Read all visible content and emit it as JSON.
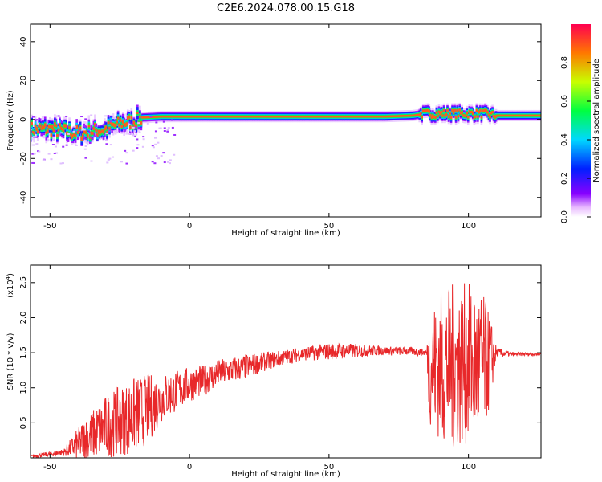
{
  "title": "C2E6.2024.078.00.15.G18",
  "chart_data": [
    {
      "type": "heatmap",
      "xlabel": "Height of straight line (km)",
      "ylabel": "Frequency (Hz)",
      "xlim": [
        -57,
        126
      ],
      "ylim": [
        -50,
        49
      ],
      "x_ticks": [
        -50,
        0,
        50,
        100
      ],
      "y_ticks": [
        -40,
        -20,
        0,
        20,
        40
      ],
      "colorbar": {
        "label": "Normalized spectral amplitude",
        "range": [
          0.0,
          1.0
        ],
        "ticks": [
          "0.0",
          "0.2",
          "0.4",
          "0.6",
          "0.8"
        ],
        "tick_values": [
          0.0,
          0.2,
          0.4,
          0.6,
          0.8
        ]
      },
      "ridge": {
        "x": [
          -57,
          -50,
          -45,
          -40,
          -35,
          -30,
          -25,
          -20,
          -17,
          -10,
          0,
          10,
          20,
          30,
          40,
          50,
          60,
          70,
          80,
          85,
          90,
          95,
          100,
          105,
          110,
          115,
          120,
          126
        ],
        "freq": [
          -5,
          -5,
          -6,
          -7,
          -6,
          -5,
          -2,
          -1,
          1,
          1.5,
          1.5,
          1.5,
          1.5,
          1.5,
          1.5,
          1.5,
          1.5,
          1.5,
          2,
          3,
          3,
          3,
          3,
          3,
          2,
          2,
          2,
          2
        ]
      }
    },
    {
      "type": "line",
      "xlabel": "Height of straight line (km)",
      "ylabel": "SNR (10 * v/v)",
      "y_scale_label": "(x10",
      "y_scale_exp": "4",
      "y_scale_close": ")",
      "xlim": [
        -57,
        126
      ],
      "ylim": [
        0.0,
        2.75
      ],
      "x_ticks": [
        -50,
        0,
        50,
        100
      ],
      "y_ticks": [
        "0.5",
        "1.0",
        "1.5",
        "2.0",
        "2.5"
      ],
      "y_tick_values": [
        0.5,
        1.0,
        1.5,
        2.0,
        2.5
      ],
      "color": "#e8282a",
      "envelope": {
        "x": [
          -57,
          -45,
          -38,
          -30,
          -20,
          -15,
          -10,
          -5,
          0,
          5,
          10,
          20,
          30,
          40,
          50,
          60,
          70,
          80,
          85,
          86,
          90,
          95,
          100,
          105,
          108,
          110,
          115,
          126
        ],
        "mean": [
          0.02,
          0.08,
          0.25,
          0.45,
          0.6,
          0.7,
          0.85,
          0.95,
          1.05,
          1.1,
          1.2,
          1.3,
          1.4,
          1.48,
          1.52,
          1.53,
          1.53,
          1.52,
          1.5,
          1.3,
          1.3,
          1.3,
          1.35,
          1.3,
          1.4,
          1.5,
          1.48,
          1.48
        ],
        "amp": [
          0.02,
          0.05,
          0.3,
          0.45,
          0.55,
          0.5,
          0.35,
          0.3,
          0.25,
          0.22,
          0.2,
          0.18,
          0.12,
          0.1,
          0.12,
          0.1,
          0.06,
          0.06,
          0.05,
          0.8,
          1.1,
          1.2,
          1.15,
          1.1,
          0.6,
          0.08,
          0.03,
          0.02
        ]
      }
    }
  ]
}
